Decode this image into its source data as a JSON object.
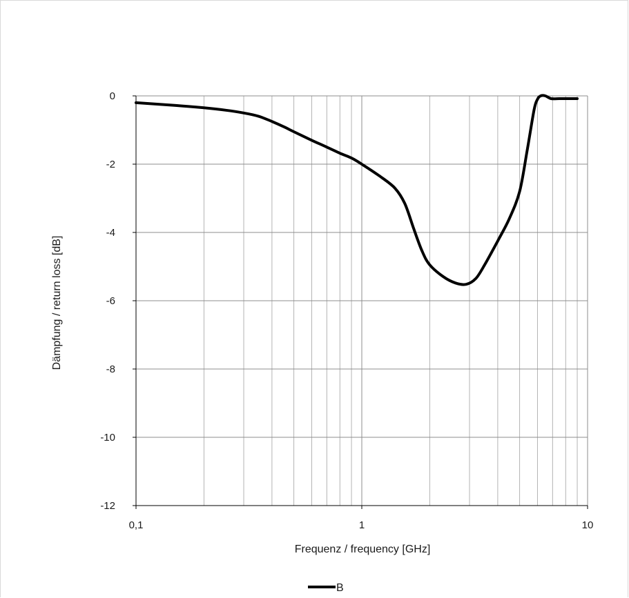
{
  "chart_data": {
    "type": "line",
    "xlabel": "Frequenz / frequency [GHz]",
    "ylabel": "Dämpfung / return loss [dB]",
    "x_scale": "log",
    "xlim": [
      0.1,
      10
    ],
    "ylim": [
      -12,
      0
    ],
    "x_ticks": [
      {
        "value": 0.1,
        "label": "0,1"
      },
      {
        "value": 1,
        "label": "1"
      },
      {
        "value": 10,
        "label": "10"
      }
    ],
    "y_ticks": [
      {
        "value": 0,
        "label": "0"
      },
      {
        "value": -2,
        "label": "-2"
      },
      {
        "value": -4,
        "label": "-4"
      },
      {
        "value": -6,
        "label": "-6"
      },
      {
        "value": -8,
        "label": "-8"
      },
      {
        "value": -10,
        "label": "-10"
      },
      {
        "value": -12,
        "label": "-12"
      }
    ],
    "grid": true,
    "legend_position": "bottom",
    "series": [
      {
        "name": "B",
        "color": "#000000",
        "x": [
          0.1,
          0.15,
          0.2,
          0.25,
          0.3,
          0.35,
          0.4,
          0.45,
          0.5,
          0.6,
          0.7,
          0.8,
          0.9,
          1.0,
          1.2,
          1.4,
          1.55,
          1.7,
          1.85,
          2.0,
          2.3,
          2.6,
          2.9,
          3.2,
          3.5,
          4.0,
          4.5,
          5.0,
          5.4,
          5.8,
          6.0,
          6.2,
          6.5,
          6.9,
          7.5,
          8.0,
          9.0
        ],
        "y": [
          -0.2,
          -0.28,
          -0.35,
          -0.42,
          -0.5,
          -0.6,
          -0.75,
          -0.9,
          -1.05,
          -1.3,
          -1.5,
          -1.68,
          -1.82,
          -2.0,
          -2.35,
          -2.7,
          -3.15,
          -3.9,
          -4.55,
          -4.95,
          -5.3,
          -5.48,
          -5.52,
          -5.35,
          -4.95,
          -4.25,
          -3.6,
          -2.8,
          -1.6,
          -0.4,
          -0.1,
          0.0,
          0.0,
          -0.08,
          -0.08,
          -0.08,
          -0.08
        ]
      }
    ]
  }
}
